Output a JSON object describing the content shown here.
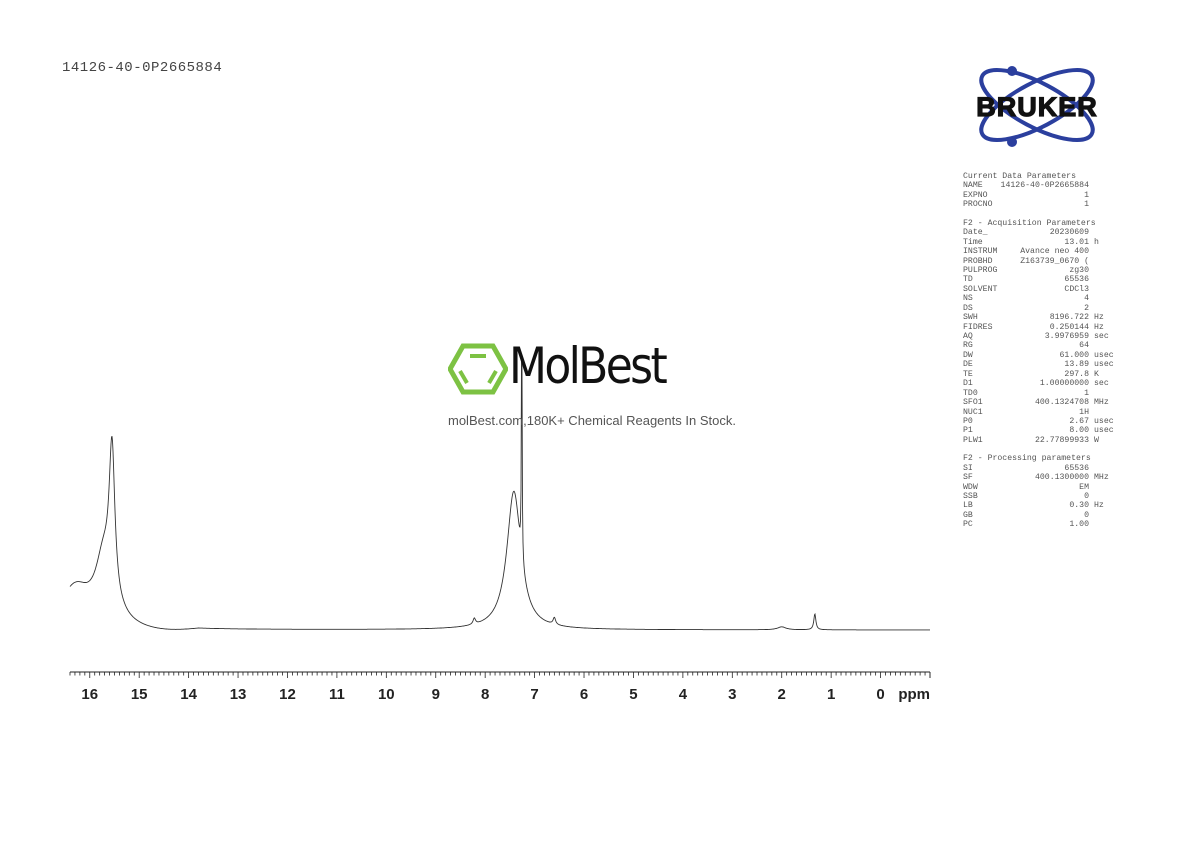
{
  "title": "14126-40-0P2665884",
  "logos": {
    "bruker": "BRUKER",
    "watermark": "MolBest",
    "watermark_sub": "molBest.com,180K+ Chemical Reagents In Stock."
  },
  "colors": {
    "spectrum": "#333333",
    "bruker_blue": "#2b3f9e",
    "molbest_green": "#7dc243"
  },
  "params": [
    {
      "title": "Current Data Parameters",
      "rows": [
        [
          "NAME",
          "14126-40-0P2665884",
          ""
        ],
        [
          "EXPNO",
          "1",
          ""
        ],
        [
          "PROCNO",
          "1",
          ""
        ]
      ]
    },
    {
      "title": "F2 - Acquisition Parameters",
      "rows": [
        [
          "Date_",
          "20230609",
          ""
        ],
        [
          "Time",
          "13.01",
          "h"
        ],
        [
          "INSTRUM",
          "Avance neo 400",
          ""
        ],
        [
          "PROBHD",
          "Z163739_0670 (",
          ""
        ],
        [
          "PULPROG",
          "zg30",
          ""
        ],
        [
          "TD",
          "65536",
          ""
        ],
        [
          "SOLVENT",
          "CDCl3",
          ""
        ],
        [
          "NS",
          "4",
          ""
        ],
        [
          "DS",
          "2",
          ""
        ],
        [
          "SWH",
          "8196.722",
          "Hz"
        ],
        [
          "FIDRES",
          "0.250144",
          "Hz"
        ],
        [
          "AQ",
          "3.9976959",
          "sec"
        ],
        [
          "RG",
          "64",
          ""
        ],
        [
          "DW",
          "61.000",
          "usec"
        ],
        [
          "DE",
          "13.89",
          "usec"
        ],
        [
          "TE",
          "297.8",
          "K"
        ],
        [
          "D1",
          "1.00000000",
          "sec"
        ],
        [
          "TD0",
          "1",
          ""
        ],
        [
          "SFO1",
          "400.1324708",
          "MHz"
        ],
        [
          "NUC1",
          "1H",
          ""
        ],
        [
          "P0",
          "2.67",
          "usec"
        ],
        [
          "P1",
          "8.00",
          "usec"
        ],
        [
          "PLW1",
          "22.77899933",
          "W"
        ]
      ]
    },
    {
      "title": "F2 - Processing parameters",
      "rows": [
        [
          "SI",
          "65536",
          ""
        ],
        [
          "SF",
          "400.1300000",
          "MHz"
        ],
        [
          "WDW",
          "EM",
          ""
        ],
        [
          "SSB",
          "0",
          ""
        ],
        [
          "LB",
          "0.30",
          "Hz"
        ],
        [
          "GB",
          "0",
          ""
        ],
        [
          "PC",
          "1.00",
          ""
        ]
      ]
    }
  ],
  "chart_data": {
    "type": "line",
    "xlabel": "ppm",
    "xlim": [
      16.4,
      -1.0
    ],
    "x_reversed": true,
    "ticks": [
      "16",
      "15",
      "14",
      "13",
      "12",
      "11",
      "10",
      "9",
      "8",
      "7",
      "6",
      "5",
      "4",
      "3",
      "2",
      "1",
      "0"
    ],
    "grid": false,
    "peaks": [
      {
        "ppm": 16.3,
        "height": 40,
        "width": 0.4
      },
      {
        "ppm": 15.55,
        "height": 150,
        "width": 0.07
      },
      {
        "ppm": 15.72,
        "height": 60,
        "width": 0.2
      },
      {
        "ppm": 7.42,
        "height": 138,
        "width": 0.17
      },
      {
        "ppm": 7.26,
        "height": 270,
        "width": 0.008
      },
      {
        "ppm": 8.22,
        "height": 6,
        "width": 0.03
      },
      {
        "ppm": 6.6,
        "height": 7,
        "width": 0.03
      },
      {
        "ppm": 2.0,
        "height": 3,
        "width": 0.1
      },
      {
        "ppm": 1.33,
        "height": 16,
        "width": 0.025
      }
    ]
  }
}
